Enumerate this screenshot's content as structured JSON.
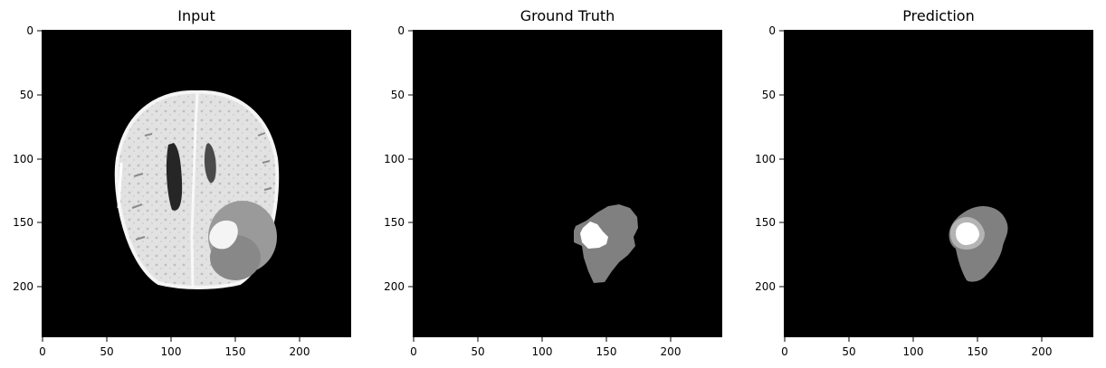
{
  "panels": [
    {
      "title": "Input",
      "xticks": [
        "0",
        "50",
        "100",
        "150",
        "200"
      ],
      "yticks": [
        "0",
        "50",
        "100",
        "150",
        "200"
      ]
    },
    {
      "title": "Ground Truth",
      "xticks": [
        "0",
        "50",
        "100",
        "150",
        "200"
      ],
      "yticks": [
        "0",
        "50",
        "100",
        "150",
        "200"
      ]
    },
    {
      "title": "Prediction",
      "xticks": [
        "0",
        "50",
        "100",
        "150",
        "200"
      ],
      "yticks": [
        "0",
        "50",
        "100",
        "150",
        "200"
      ]
    }
  ],
  "colors": {
    "background": "#000000",
    "tumor_region": "#808080",
    "tumor_core": "#ffffff"
  }
}
